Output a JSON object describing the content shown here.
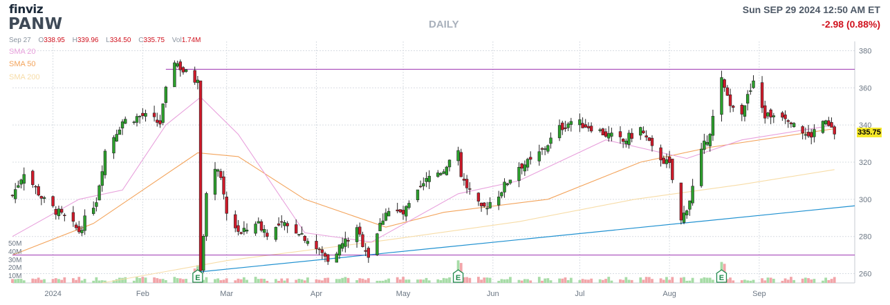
{
  "header": {
    "logo": "finviz",
    "ticker": "PANW",
    "timeframe": "DAILY",
    "datetime": "Sun SEP 29 2024 12:50 AM ET",
    "change": "-2.98 (0.88%)"
  },
  "ohlc": {
    "date": "Sep 27",
    "o_label": "O",
    "o": "338.95",
    "h_label": "H",
    "h": "339.96",
    "l_label": "L",
    "l": "334.50",
    "c_label": "C",
    "c": "335.75",
    "vol_label": "Vol",
    "vol": "1.74M"
  },
  "legend": [
    {
      "label": "SMA 20",
      "color": "#e8a0dc"
    },
    {
      "label": "SMA 50",
      "color": "#f3a35a"
    },
    {
      "label": "SMA 200",
      "color": "#f7dca6"
    }
  ],
  "last_price": "335.75",
  "colors": {
    "up": "#2ca02c",
    "down": "#d01a2a",
    "trendline": "#1e90d0",
    "resistance": "#9b30b0",
    "support": "#9b30b0",
    "vol_up": "#a7dca7",
    "vol_down": "#f2a5a9"
  },
  "chart_data": {
    "type": "candlestick",
    "title": "PANW",
    "y_axis": {
      "ticks": [
        260,
        280,
        300,
        320,
        340,
        360,
        380
      ],
      "range": [
        255,
        385
      ]
    },
    "volume_axis": {
      "ticks": [
        "10M",
        "20M",
        "30M",
        "40M",
        "50M"
      ]
    },
    "x_axis": {
      "ticks": [
        "2024",
        "Feb",
        "Mar",
        "Apr",
        "May",
        "Jun",
        "Jul",
        "Aug",
        "Sep"
      ]
    },
    "x_range": [
      "2023-12-18",
      "2024-10-04"
    ],
    "horizontal_lines": [
      370,
      270
    ],
    "trendline": [
      {
        "date": "2024-02-21",
        "value": 261
      },
      {
        "date": "2024-10-03",
        "value": 296.5
      }
    ],
    "earnings_markers": [
      {
        "date": "2024-02-20",
        "label": "E"
      },
      {
        "date": "2024-05-20",
        "label": "E"
      },
      {
        "date": "2024-08-19",
        "label": "E"
      }
    ],
    "anchors": [
      [
        "2023-12-18",
        302
      ],
      [
        "2023-12-22",
        315
      ],
      [
        "2023-12-29",
        299
      ],
      [
        "2024-01-05",
        290
      ],
      [
        "2024-01-10",
        283
      ],
      [
        "2024-01-16",
        300
      ],
      [
        "2024-01-19",
        326
      ],
      [
        "2024-01-25",
        342
      ],
      [
        "2024-02-01",
        345
      ],
      [
        "2024-02-07",
        341
      ],
      [
        "2024-02-09",
        358
      ],
      [
        "2024-02-12",
        375
      ],
      [
        "2024-02-15",
        369
      ],
      [
        "2024-02-20",
        363
      ],
      [
        "2024-02-21",
        263
      ],
      [
        "2024-02-23",
        302
      ],
      [
        "2024-02-27",
        318
      ],
      [
        "2024-03-01",
        292
      ],
      [
        "2024-03-06",
        281
      ],
      [
        "2024-03-11",
        288
      ],
      [
        "2024-03-15",
        282
      ],
      [
        "2024-03-20",
        286
      ],
      [
        "2024-03-26",
        283
      ],
      [
        "2024-04-02",
        272
      ],
      [
        "2024-04-05",
        268
      ],
      [
        "2024-04-10",
        276
      ],
      [
        "2024-04-15",
        283
      ],
      [
        "2024-04-19",
        270
      ],
      [
        "2024-04-25",
        294
      ],
      [
        "2024-05-01",
        292
      ],
      [
        "2024-05-06",
        303
      ],
      [
        "2024-05-10",
        312
      ],
      [
        "2024-05-15",
        316
      ],
      [
        "2024-05-17",
        322
      ],
      [
        "2024-05-20",
        324
      ],
      [
        "2024-05-21",
        312
      ],
      [
        "2024-05-28",
        294
      ],
      [
        "2024-06-03",
        303
      ],
      [
        "2024-06-10",
        318
      ],
      [
        "2024-06-14",
        320
      ],
      [
        "2024-06-18",
        326
      ],
      [
        "2024-06-24",
        338
      ],
      [
        "2024-06-28",
        342
      ],
      [
        "2024-07-05",
        339
      ],
      [
        "2024-07-10",
        335
      ],
      [
        "2024-07-16",
        331
      ],
      [
        "2024-07-22",
        338
      ],
      [
        "2024-07-26",
        327
      ],
      [
        "2024-08-01",
        318
      ],
      [
        "2024-08-05",
        288
      ],
      [
        "2024-08-08",
        300
      ],
      [
        "2024-08-12",
        325
      ],
      [
        "2024-08-15",
        337
      ],
      [
        "2024-08-19",
        364
      ],
      [
        "2024-08-21",
        354
      ],
      [
        "2024-08-26",
        348
      ],
      [
        "2024-08-30",
        362
      ],
      [
        "2024-09-03",
        345
      ],
      [
        "2024-09-09",
        346
      ],
      [
        "2024-09-13",
        342
      ],
      [
        "2024-09-18",
        333
      ],
      [
        "2024-09-23",
        342
      ],
      [
        "2024-09-27",
        335.75
      ]
    ],
    "sma20": [
      [
        "2023-12-18",
        280
      ],
      [
        "2024-01-10",
        300
      ],
      [
        "2024-01-25",
        305
      ],
      [
        "2024-02-09",
        340
      ],
      [
        "2024-02-21",
        355
      ],
      [
        "2024-03-05",
        335
      ],
      [
        "2024-03-28",
        282
      ],
      [
        "2024-04-20",
        277
      ],
      [
        "2024-05-20",
        303
      ],
      [
        "2024-06-10",
        310
      ],
      [
        "2024-07-10",
        332
      ],
      [
        "2024-08-07",
        322
      ],
      [
        "2024-08-26",
        332
      ],
      [
        "2024-09-27",
        340
      ]
    ],
    "sma50": [
      [
        "2023-12-18",
        270
      ],
      [
        "2024-01-15",
        287
      ],
      [
        "2024-02-20",
        325
      ],
      [
        "2024-03-05",
        323
      ],
      [
        "2024-03-28",
        300
      ],
      [
        "2024-04-25",
        285
      ],
      [
        "2024-05-15",
        293
      ],
      [
        "2024-06-20",
        300
      ],
      [
        "2024-07-22",
        320
      ],
      [
        "2024-08-15",
        328
      ],
      [
        "2024-09-27",
        338
      ]
    ],
    "sma200": [
      [
        "2024-01-18",
        255
      ],
      [
        "2024-03-01",
        267
      ],
      [
        "2024-04-25",
        278
      ],
      [
        "2024-06-10",
        288
      ],
      [
        "2024-07-20",
        300
      ],
      [
        "2024-08-26",
        308
      ],
      [
        "2024-09-27",
        316
      ]
    ]
  }
}
